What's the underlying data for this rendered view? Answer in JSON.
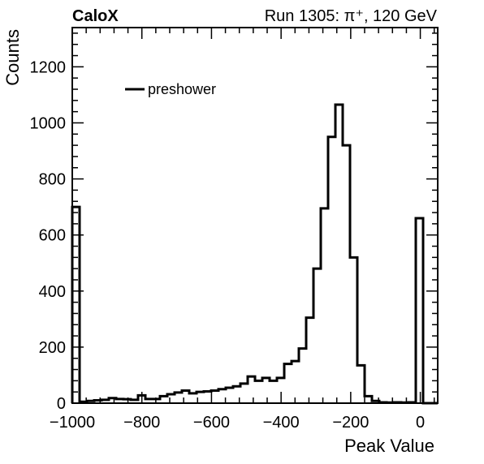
{
  "chart_data": {
    "type": "histogram",
    "experiment_label": "CaloX",
    "run_label": "Run 1305:   π⁺, 120 GeV",
    "xlabel": "Peak Value",
    "ylabel": "Counts",
    "xlim": [
      -1000,
      50
    ],
    "ylim": [
      0,
      1340
    ],
    "x_ticks": [
      -1000,
      -800,
      -600,
      -400,
      -200,
      0
    ],
    "x_tick_labels": [
      "−1000",
      "−800",
      "−600",
      "−400",
      "−200",
      "0"
    ],
    "y_ticks": [
      0,
      200,
      400,
      600,
      800,
      1000,
      1200
    ],
    "y_tick_labels": [
      "0",
      "200",
      "400",
      "600",
      "800",
      "1000",
      "1200"
    ],
    "legend": {
      "position": "top-left",
      "entries": [
        "preshower"
      ]
    },
    "line_color": "#000000",
    "series": [
      {
        "name": "preshower",
        "bin_edges": [
          -1000,
          -979,
          -958,
          -937,
          -916,
          -895,
          -874,
          -853,
          -832,
          -811,
          -790,
          -769,
          -748,
          -727,
          -706,
          -685,
          -664,
          -643,
          -622,
          -601,
          -580,
          -559,
          -538,
          -517,
          -496,
          -475,
          -454,
          -433,
          -412,
          -391,
          -370,
          -349,
          -328,
          -307,
          -286,
          -265,
          -244,
          -223,
          -202,
          -181,
          -160,
          -139,
          -118,
          -97,
          -76,
          -55,
          -34,
          -13,
          8,
          29,
          50
        ],
        "counts": [
          700,
          5,
          8,
          10,
          12,
          18,
          15,
          14,
          12,
          28,
          15,
          15,
          25,
          32,
          38,
          45,
          35,
          40,
          42,
          45,
          50,
          55,
          60,
          70,
          95,
          80,
          90,
          80,
          90,
          140,
          150,
          195,
          305,
          480,
          695,
          950,
          1065,
          920,
          520,
          135,
          25,
          8,
          3,
          2,
          3,
          2,
          3,
          660,
          0,
          0
        ]
      }
    ]
  }
}
